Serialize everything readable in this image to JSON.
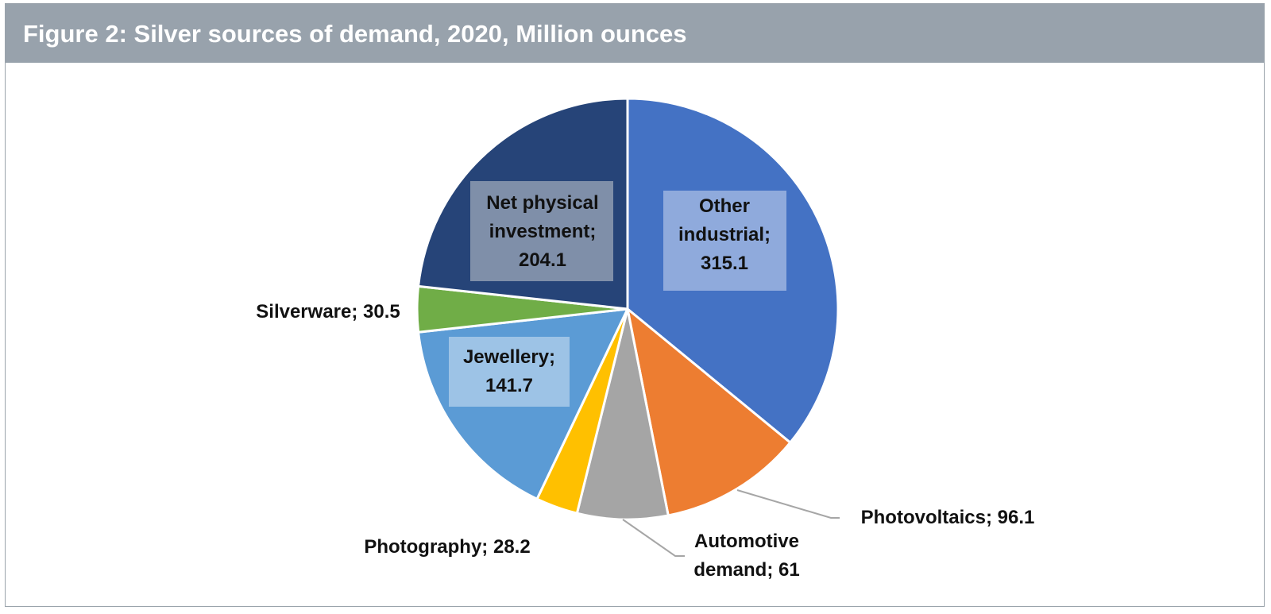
{
  "header": {
    "title": "Figure 2: Silver sources of demand, 2020, Million ounces"
  },
  "colors": {
    "title_bar": "#98a2ac",
    "title_text": "#ffffff",
    "leader_line": "#a6a6a6"
  },
  "chart_data": {
    "type": "pie",
    "title": "Figure 2: Silver sources of demand, 2020, Million ounces",
    "slices": [
      {
        "name": "Other industrial",
        "value": 315.1,
        "color": "#4472c4",
        "label_lines": [
          "Other",
          "industrial;",
          "315.1"
        ],
        "label_box": true,
        "label_box_color": "#8faadc"
      },
      {
        "name": "Photovoltaics",
        "value": 96.1,
        "color": "#ed7d31",
        "label_lines": [
          "Photovoltaics; 96.1"
        ],
        "label_box": false
      },
      {
        "name": "Automotive demand",
        "value": 61,
        "color": "#a5a5a5",
        "label_lines": [
          "Automotive",
          "demand; 61"
        ],
        "label_box": false
      },
      {
        "name": "Photography",
        "value": 28.2,
        "color": "#ffc000",
        "label_lines": [
          "Photography; 28.2"
        ],
        "label_box": false
      },
      {
        "name": "Jewellery",
        "value": 141.7,
        "color": "#5b9bd5",
        "label_lines": [
          "Jewellery;",
          "141.7"
        ],
        "label_box": true,
        "label_box_color": "#9dc3e6"
      },
      {
        "name": "Silverware",
        "value": 30.5,
        "color": "#70ad47",
        "label_lines": [
          "Silverware; 30.5"
        ],
        "label_box": false
      },
      {
        "name": "Net physical investment",
        "value": 204.1,
        "color": "#264478",
        "label_lines": [
          "Net physical",
          "investment;",
          "204.1"
        ],
        "label_box": true,
        "label_box_color": "#7f8fa9"
      }
    ],
    "start_angle_deg": 0,
    "direction": "clockwise",
    "legend": "none",
    "data_labels": "name; value"
  }
}
